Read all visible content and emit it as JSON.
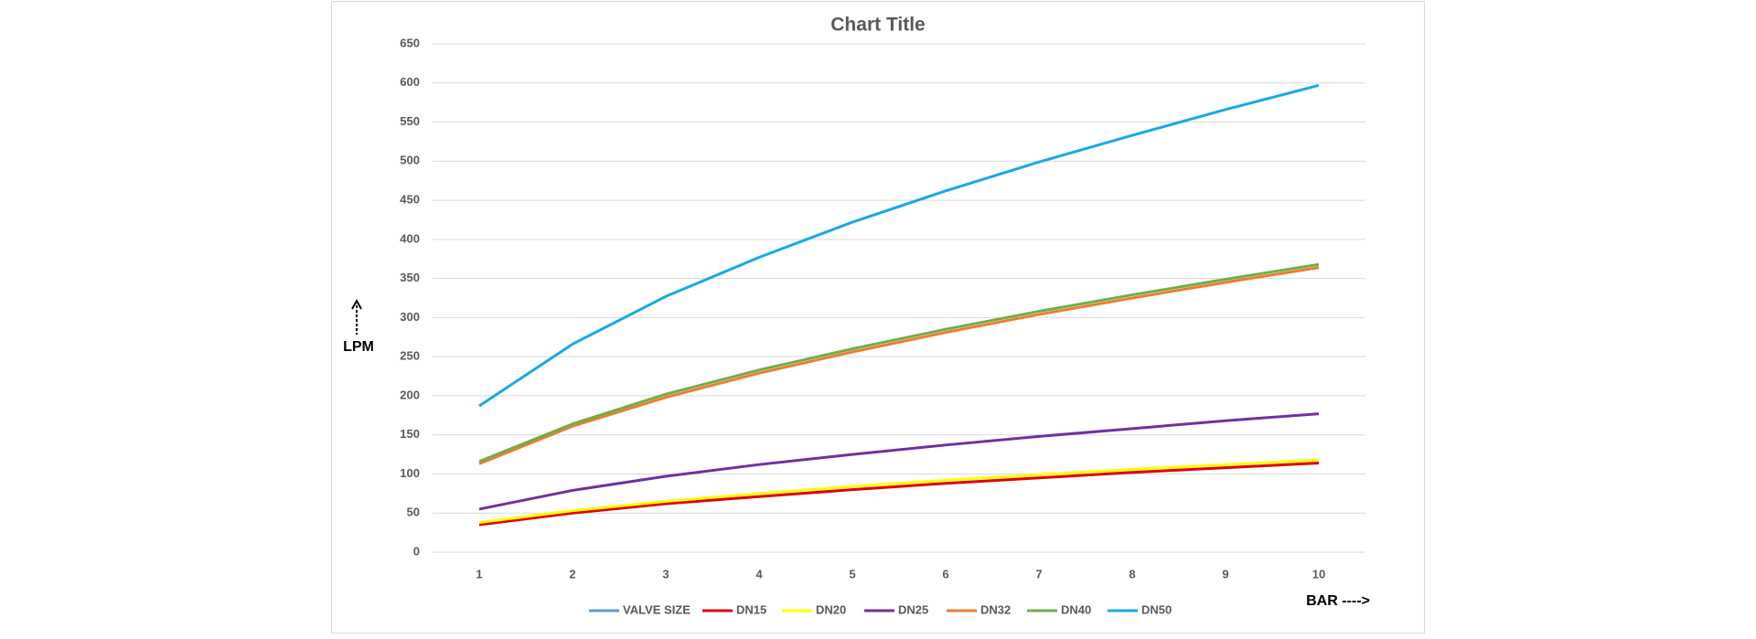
{
  "chart_data": {
    "type": "line",
    "title": "Chart Title",
    "y_label": "LPM",
    "x_label": "BAR ---->",
    "categories": [
      "1",
      "2",
      "3",
      "4",
      "5",
      "6",
      "7",
      "8",
      "9",
      "10"
    ],
    "series": [
      {
        "name": "VALVE SIZE",
        "color": "#5b9bd5",
        "values": [
          null,
          null,
          null,
          null,
          null,
          null,
          null,
          null,
          null,
          null
        ]
      },
      {
        "name": "DN15",
        "color": "#e00000",
        "values": [
          35,
          50,
          62,
          71,
          80,
          88,
          95,
          102,
          108,
          114
        ]
      },
      {
        "name": "DN20",
        "color": "#ffff00",
        "values": [
          38,
          53,
          65,
          75,
          84,
          92,
          99,
          106,
          112,
          118
        ]
      },
      {
        "name": "DN25",
        "color": "#7030a0",
        "values": [
          55,
          79,
          97,
          112,
          125,
          137,
          148,
          158,
          168,
          177
        ]
      },
      {
        "name": "DN32",
        "color": "#ed7d31",
        "values": [
          113,
          161,
          198,
          229,
          256,
          281,
          304,
          325,
          345,
          364
        ]
      },
      {
        "name": "DN40",
        "color": "#70ad47",
        "values": [
          116,
          164,
          202,
          233,
          260,
          285,
          308,
          329,
          349,
          368
        ]
      },
      {
        "name": "DN50",
        "color": "#17a9e6",
        "values": [
          187,
          266,
          327,
          377,
          422,
          462,
          499,
          533,
          566,
          597
        ]
      }
    ],
    "ylim": [
      0,
      650
    ],
    "yticks": [
      0,
      50,
      100,
      150,
      200,
      250,
      300,
      350,
      400,
      450,
      500,
      550,
      600,
      650
    ],
    "grid": true,
    "legend": "bottom"
  }
}
